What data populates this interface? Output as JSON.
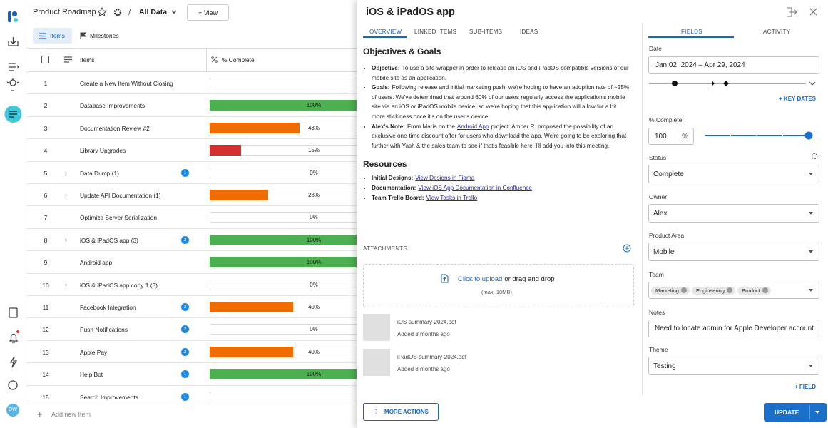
{
  "sidebar": {
    "avatar": "DW"
  },
  "header": {
    "title": "Product Roadmap",
    "view": "All Data",
    "add_view": "+ View"
  },
  "tabs": [
    "Items",
    "Milestones"
  ],
  "table": {
    "columns": [
      "Items",
      "% Complete"
    ],
    "rows": [
      {
        "number": 1,
        "name": "Create a New Item Without Closing"
      },
      {
        "number": 2,
        "name": "Database Improvements",
        "percent": 100,
        "percent_label": "100%",
        "color": "#4caf50"
      },
      {
        "number": 3,
        "name": "Documentation Review #2",
        "percent": 43,
        "percent_label": "43%",
        "color": "#ef6c00"
      },
      {
        "number": 4,
        "name": "Library Upgrades",
        "percent": 15,
        "percent_label": "15%",
        "color": "#d32f2f"
      },
      {
        "number": 5,
        "name": "Data Dump (1)",
        "badge": 1,
        "expandable": true,
        "percent": 0,
        "percent_label": "0%"
      },
      {
        "number": 6,
        "name": "Update API Documentation (1)",
        "expandable": true,
        "percent": 28,
        "percent_label": "28%",
        "color": "#ef6c00"
      },
      {
        "number": 7,
        "name": "Optimize Server Serialization",
        "percent": 0,
        "percent_label": "0%"
      },
      {
        "number": 8,
        "name": "iOS & iPadOS app (3)",
        "badge": 3,
        "expandable": true,
        "percent": 100,
        "percent_label": "100%",
        "color": "#4caf50"
      },
      {
        "number": 9,
        "name": "Android app",
        "percent": 100,
        "percent_label": "100%",
        "color": "#4caf50"
      },
      {
        "number": 10,
        "name": "iOS & iPadOS app copy 1 (3)",
        "expandable": true,
        "percent": 0,
        "percent_label": "0%"
      },
      {
        "number": 11,
        "name": "Facebook Integration",
        "badge": 2,
        "percent": 40,
        "percent_label": "40%",
        "color": "#ef6c00"
      },
      {
        "number": 12,
        "name": "Push Notifications",
        "badge": 2,
        "percent": 0,
        "percent_label": "0%"
      },
      {
        "number": 13,
        "name": "Apple Pay",
        "badge": 2,
        "percent": 40,
        "percent_label": "40%",
        "color": "#ef6c00"
      },
      {
        "number": 14,
        "name": "Help Bot",
        "badge": 1,
        "percent": 100,
        "percent_label": "100%",
        "color": "#4caf50"
      },
      {
        "number": 15,
        "name": "Search Improvements",
        "badge": 1
      }
    ],
    "add_row": "Add new Item"
  },
  "detail": {
    "title": "iOS & iPadOS app",
    "tabs": [
      "OVERVIEW",
      "LINKED ITEMS",
      "SUB-ITEMS",
      "IDEAS"
    ],
    "sections": [
      {
        "heading": "Objectives & Goals",
        "bullets": [
          {
            "label": "Objective:",
            "text_before": "To use a site-wrapper in order to release an iOS and iPadOS compatible versions of our mobile site as an application."
          },
          {
            "label": "Goals:",
            "text_before": "Following release and initial marketing push, we're hoping to have an adoption rate of ~25% of users. We've determined that around 60% of our users regularly access the application's mobile site via an iOS or iPadOS mobile device, so we're hoping that this application will allow for a bit more stickiness once it's on the user's device."
          },
          {
            "label": "Alex's Note:",
            "text_before": "From Maria on the",
            "link": "Android App",
            "text_after": "project: Amber R. proposed the possibility of an exclusive one-time discount offer for users who download the app. We're going to be exploring that further with Yash & the sales team to see if that's feasible here. I'll add you into this meeting."
          }
        ]
      },
      {
        "heading": "Resources",
        "bullets": [
          {
            "label": "Initial Designs:",
            "link": "View Designs in Figma"
          },
          {
            "label": "Documentation:",
            "link": "View iOS App Documentation in Confluence"
          },
          {
            "label": "Team Trello Board:",
            "link": "View Tasks in Trello"
          }
        ]
      }
    ],
    "attachments": {
      "label": "ATTACHMENTS",
      "upload_link": "Click to upload",
      "upload_text": "or drag and drop",
      "upload_limit": "(max. 10MB)",
      "files": [
        {
          "name": "iOS-summary-2024.pdf",
          "added": "Added 3 months ago"
        },
        {
          "name": "iPadOS-summary-2024.pdf",
          "added": "Added 3 months ago"
        }
      ]
    },
    "more_actions": "MORE ACTIONS"
  },
  "fields": {
    "tabs": [
      "FIELDS",
      "ACTIVITY"
    ],
    "date": {
      "label": "Date",
      "value": "Jan 02, 2024 – Apr 29, 2024"
    },
    "key_dates": "+ KEY DATES",
    "percent_complete": {
      "label": "% Complete",
      "value": 100,
      "unit": "%",
      "range": [
        0,
        100
      ]
    },
    "status": {
      "label": "Status",
      "value": "Complete"
    },
    "owner": {
      "label": "Owner",
      "value": "Alex"
    },
    "product_area": {
      "label": "Product Area",
      "value": "Mobile"
    },
    "team": {
      "label": "Team",
      "chips": [
        "Marketing",
        "Engineering",
        "Product"
      ]
    },
    "notes": {
      "label": "Notes",
      "value": "Need to locate admin for Apple Developer account."
    },
    "theme": {
      "label": "Theme",
      "value": "Testing"
    },
    "add_field": "+ FIELD",
    "update": "UPDATE"
  }
}
